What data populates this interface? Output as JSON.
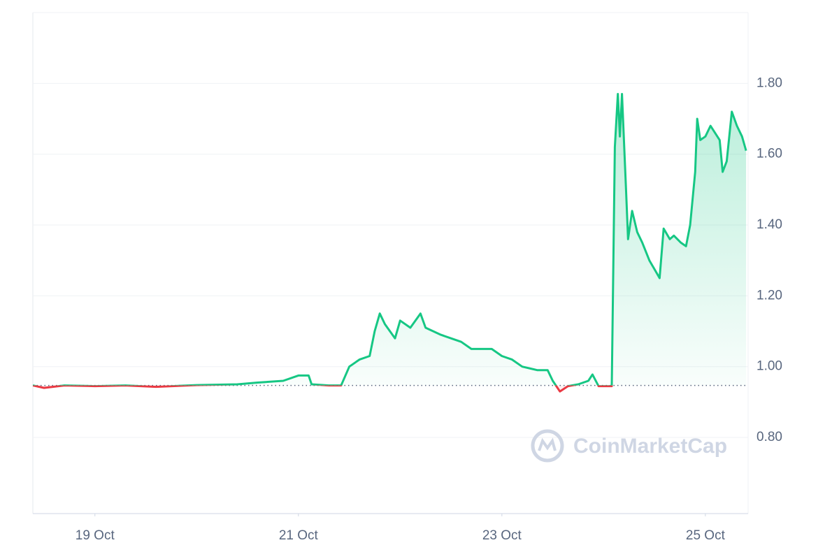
{
  "chart_data": {
    "type": "line",
    "watermark": "CoinMarketCap",
    "x": [
      18.39,
      18.5,
      18.7,
      19.0,
      19.3,
      19.6,
      20.0,
      20.4,
      20.6,
      20.85,
      21.0,
      21.1,
      21.13,
      21.3,
      21.42,
      21.5,
      21.6,
      21.7,
      21.75,
      21.8,
      21.85,
      21.95,
      22.0,
      22.1,
      22.2,
      22.25,
      22.4,
      22.5,
      22.6,
      22.7,
      22.9,
      23.0,
      23.1,
      23.2,
      23.35,
      23.45,
      23.5,
      23.57,
      23.65,
      23.75,
      23.85,
      23.89,
      23.95,
      24.08,
      24.11,
      24.14,
      24.16,
      24.18,
      24.22,
      24.24,
      24.28,
      24.33,
      24.38,
      24.45,
      24.51,
      24.55,
      24.59,
      24.65,
      24.69,
      24.76,
      24.81,
      24.85,
      24.9,
      24.92,
      24.95,
      25.0,
      25.05,
      25.14,
      25.17,
      25.21,
      25.26,
      25.31,
      25.36,
      25.4
    ],
    "values": [
      0.947,
      0.94,
      0.947,
      0.945,
      0.947,
      0.943,
      0.948,
      0.95,
      0.955,
      0.96,
      0.975,
      0.975,
      0.95,
      0.947,
      0.947,
      1.0,
      1.02,
      1.03,
      1.1,
      1.15,
      1.12,
      1.08,
      1.13,
      1.11,
      1.15,
      1.11,
      1.09,
      1.08,
      1.07,
      1.05,
      1.05,
      1.03,
      1.02,
      1.0,
      0.99,
      0.99,
      0.96,
      0.93,
      0.945,
      0.95,
      0.96,
      0.978,
      0.945,
      0.945,
      1.62,
      1.77,
      1.65,
      1.77,
      1.5,
      1.36,
      1.44,
      1.38,
      1.35,
      1.3,
      1.27,
      1.25,
      1.39,
      1.36,
      1.37,
      1.35,
      1.34,
      1.4,
      1.55,
      1.7,
      1.64,
      1.65,
      1.68,
      1.64,
      1.55,
      1.58,
      1.72,
      1.68,
      1.65,
      1.61
    ],
    "baseline": 0.947,
    "color": "#16c784",
    "down_color": "#ea3943",
    "xlim": [
      18.39,
      25.42
    ],
    "xticks": [
      {
        "value": 19,
        "label": "19 Oct"
      },
      {
        "value": 21,
        "label": "21 Oct"
      },
      {
        "value": 23,
        "label": "23 Oct"
      },
      {
        "value": 25,
        "label": "25 Oct"
      }
    ],
    "ylim": [
      0.585,
      2.0
    ],
    "yticks": [
      {
        "value": 0.8,
        "label": "0.80"
      },
      {
        "value": 1.0,
        "label": "1.00"
      },
      {
        "value": 1.2,
        "label": "1.20"
      },
      {
        "value": 1.4,
        "label": "1.40"
      },
      {
        "value": 1.6,
        "label": "1.60"
      },
      {
        "value": 1.8,
        "label": "1.80"
      }
    ],
    "grid": true
  }
}
